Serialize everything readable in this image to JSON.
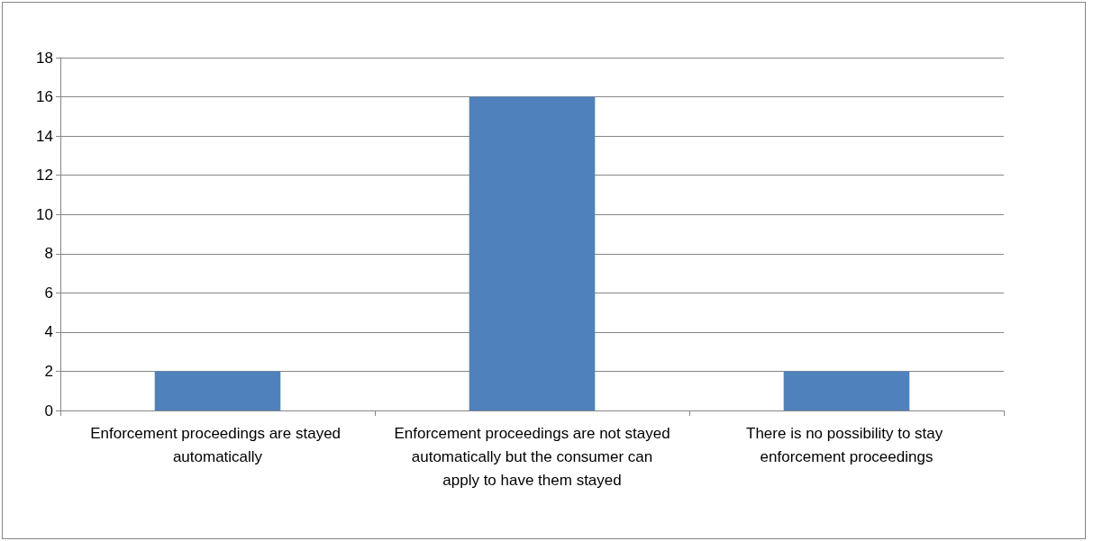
{
  "chart_data": {
    "type": "bar",
    "categories": [
      "Enforcement proceedings are stayed automatically",
      "Enforcement proceedings are not stayed automatically but the consumer can apply to have them stayed",
      "There is no possibility to stay enforcement proceedings"
    ],
    "values": [
      2,
      16,
      2
    ],
    "color": "#4f81bd",
    "ylim": [
      0,
      18
    ],
    "yticks": [
      0,
      2,
      4,
      6,
      8,
      10,
      12,
      14,
      16,
      18
    ],
    "grid": "y"
  }
}
